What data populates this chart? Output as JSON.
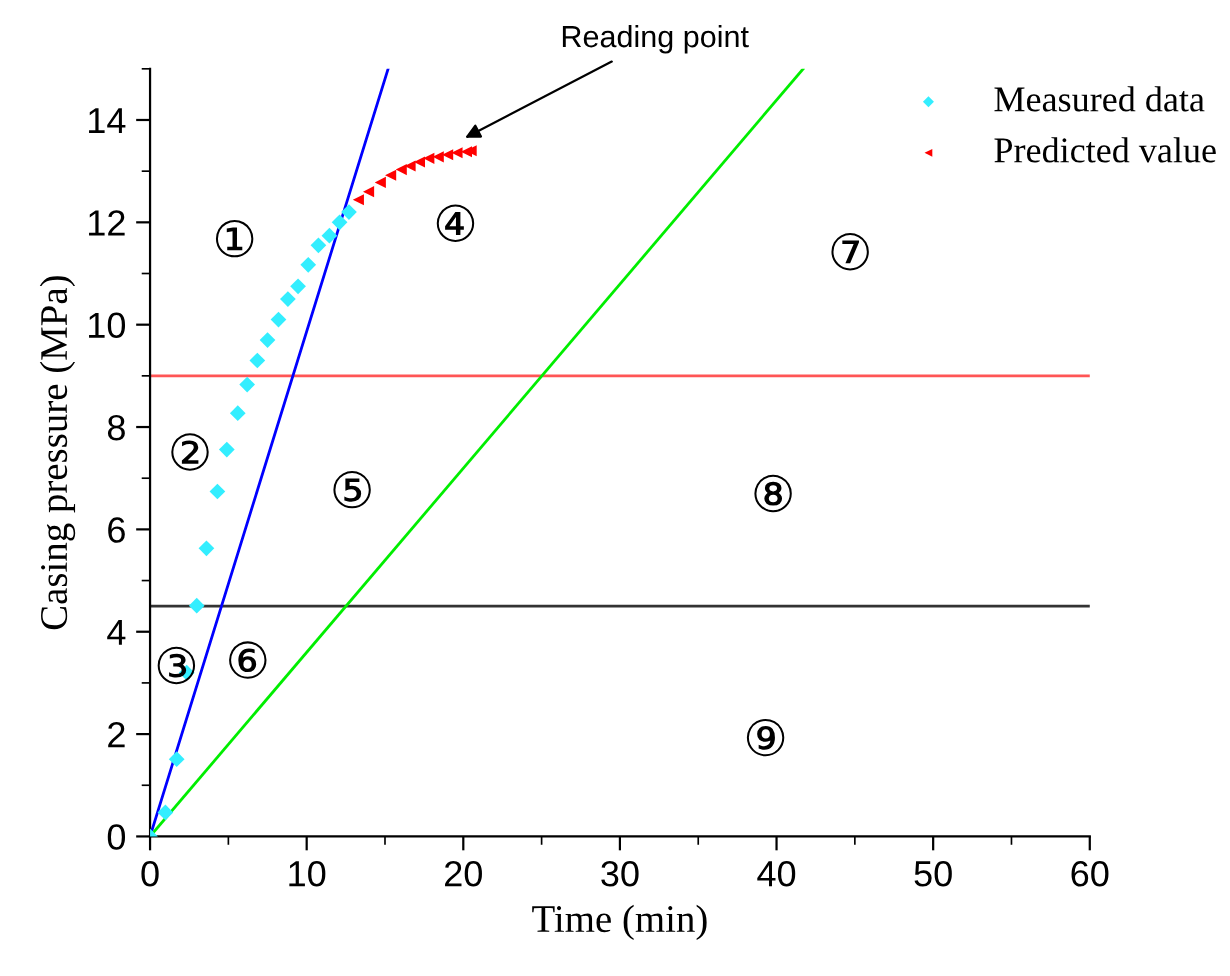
{
  "chart_data": {
    "type": "scatter",
    "xlabel": "Time (min)",
    "ylabel": "Casing pressure (MPa)",
    "xlim": [
      0,
      60
    ],
    "ylim": [
      0,
      15
    ],
    "xticks": [
      0,
      10,
      20,
      30,
      40,
      50,
      60
    ],
    "yticks": [
      0,
      2,
      4,
      6,
      8,
      10,
      12,
      14
    ],
    "grid": false,
    "legend": "top right",
    "series": [
      {
        "name": "Measured data",
        "marker": "diamond",
        "color": "#33eeff",
        "x": [
          0,
          0.98,
          1.7,
          2.34,
          2.98,
          3.6,
          4.3,
          4.9,
          5.6,
          6.2,
          6.85,
          7.5,
          8.2,
          8.8,
          9.45,
          10.1,
          10.75,
          11.45,
          12.1,
          12.7
        ],
        "values": [
          0,
          0.47,
          1.51,
          3.2,
          4.51,
          5.63,
          6.74,
          7.56,
          8.27,
          8.83,
          9.3,
          9.7,
          10.1,
          10.5,
          10.75,
          11.17,
          11.55,
          11.74,
          12.0,
          12.2
        ]
      },
      {
        "name": "Predicted value",
        "marker": "triangle",
        "color": "#ff0000",
        "x": [
          13.3,
          13.95,
          14.7,
          15.36,
          16.04,
          16.6,
          17.2,
          17.8,
          18.4,
          19.0,
          19.6,
          20.2,
          20.5
        ],
        "values": [
          12.44,
          12.6,
          12.78,
          12.92,
          13.03,
          13.1,
          13.18,
          13.25,
          13.28,
          13.32,
          13.36,
          13.38,
          13.4
        ]
      },
      {
        "type": "line",
        "color": "#0000ff",
        "x": [
          0,
          15.2
        ],
        "values": [
          0,
          15
        ]
      },
      {
        "type": "line",
        "color": "#00ee00",
        "x": [
          0,
          41.7
        ],
        "values": [
          0,
          15
        ]
      }
    ],
    "ref_lines": [
      {
        "axis": "y",
        "value": 9,
        "color": "#ff5555"
      },
      {
        "axis": "y",
        "value": 4.5,
        "color": "#333333"
      }
    ],
    "annotations": [
      {
        "text": "Reading point",
        "x": 19.8,
        "y": 13.6
      },
      "①",
      "②",
      "③",
      "④",
      "⑤",
      "⑥",
      "⑦",
      "⑧",
      "⑨"
    ]
  }
}
